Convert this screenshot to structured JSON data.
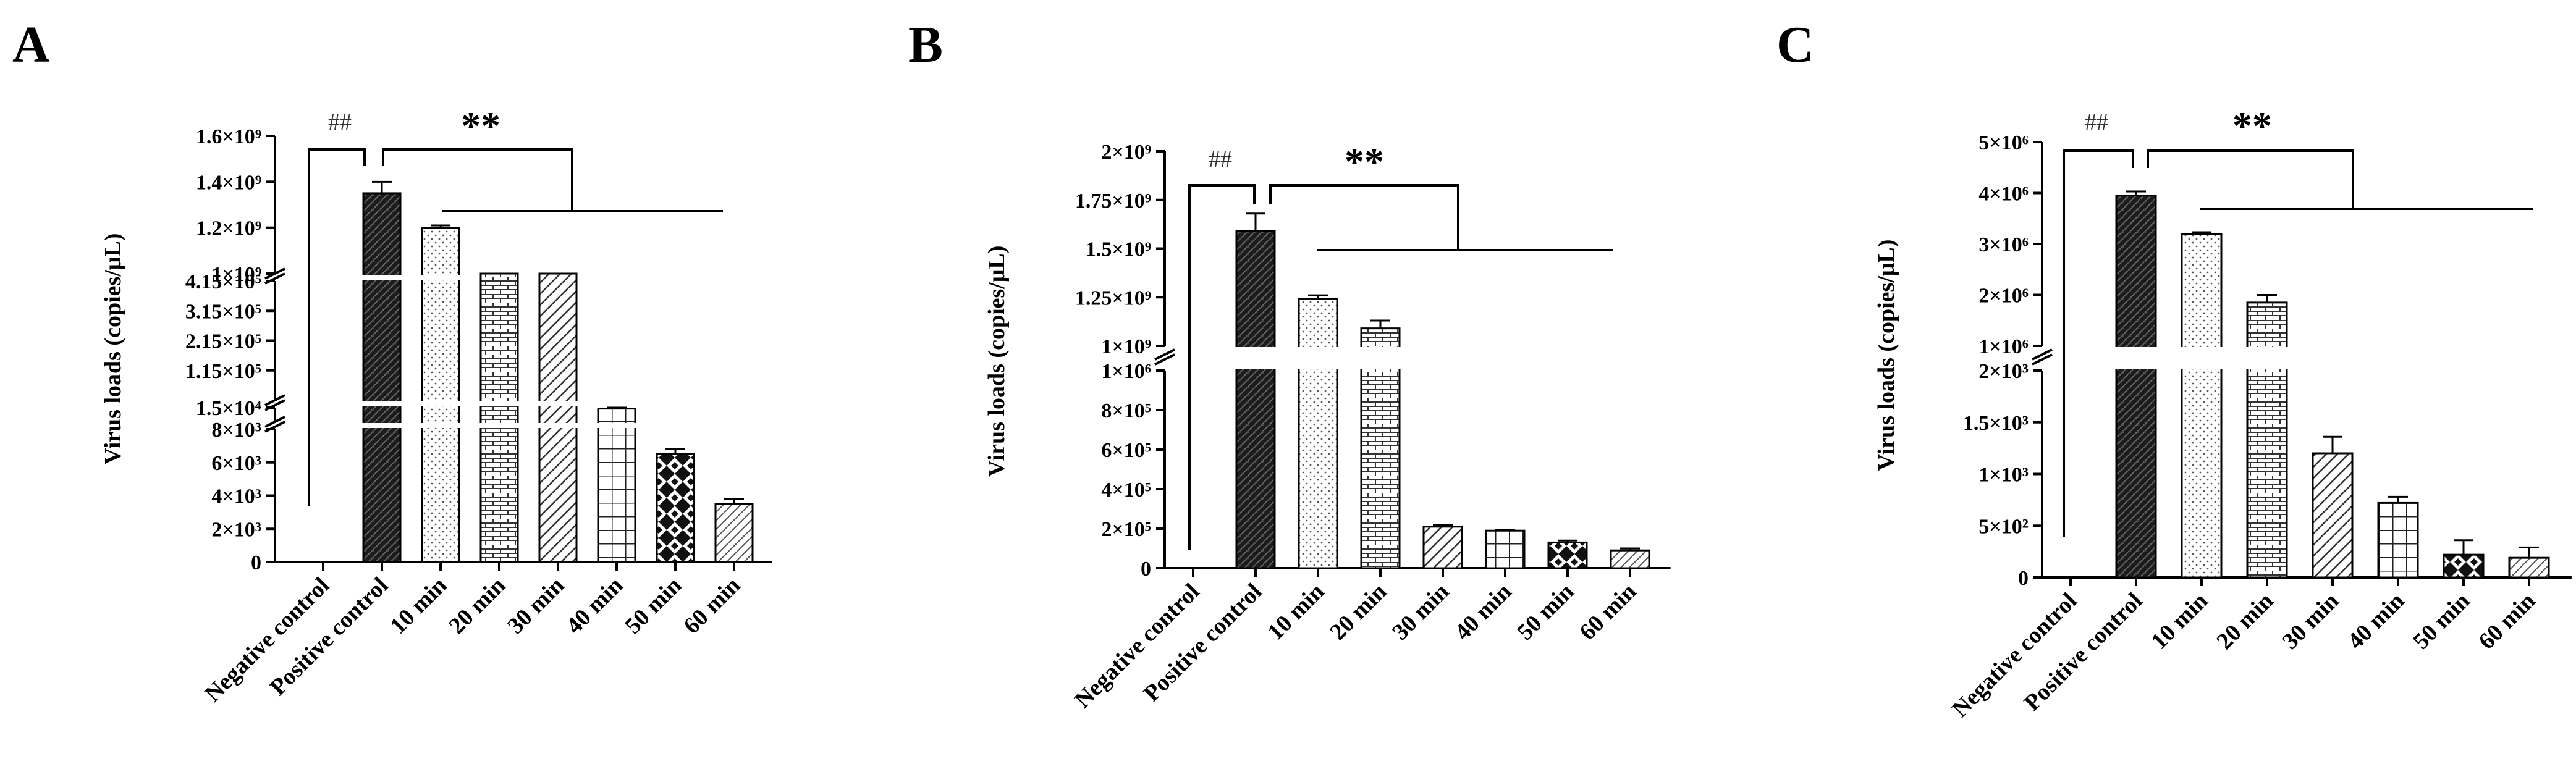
{
  "chart_data": [
    {
      "type": "bar",
      "panel": "A",
      "ylabel": "Virus loads (copies/μL)",
      "categories": [
        "Negative control",
        "Positive control",
        "10 min",
        "20 min",
        "30 min",
        "40 min",
        "50 min",
        "60 min"
      ],
      "values": [
        0,
        1350000000,
        1200000000,
        400000000,
        180000000,
        14500,
        6500,
        3500
      ],
      "errors": [
        0,
        50000000,
        10000000,
        15000000,
        50000000,
        500,
        300,
        300
      ],
      "y_segments": [
        {
          "range": [
            0,
            8000
          ],
          "ticks": [
            0,
            2000,
            4000,
            6000,
            8000
          ],
          "tick_labels": [
            "0",
            "2×10³",
            "4×10³",
            "6×10³",
            "8×10³"
          ]
        },
        {
          "range": [
            8000,
            15000
          ],
          "ticks": [
            15000
          ],
          "tick_labels": [
            "1.5×10⁴"
          ]
        },
        {
          "range": [
            15000,
            415000
          ],
          "ticks": [
            115000,
            215000,
            315000,
            415000
          ],
          "tick_labels": [
            "1.15×10⁵",
            "2.15×10⁵",
            "3.15×10⁵",
            "4.15×10⁵"
          ]
        },
        {
          "range": [
            1000000000,
            1600000000
          ],
          "ticks": [
            1000000000,
            1200000000,
            1400000000,
            1600000000
          ],
          "tick_labels": [
            "1×10⁹",
            "1.2×10⁹",
            "1.4×10⁹",
            "1.6×10⁹"
          ]
        }
      ],
      "annotations": [
        "##",
        "**"
      ]
    },
    {
      "type": "bar",
      "panel": "B",
      "ylabel": "Virus loads (copies/μL)",
      "categories": [
        "Negative control",
        "Positive control",
        "10 min",
        "20 min",
        "30 min",
        "40 min",
        "50 min",
        "60 min"
      ],
      "values": [
        0,
        1590000000,
        1240000000,
        1090000000,
        210000,
        190000,
        130000,
        90000
      ],
      "errors": [
        0,
        90000000,
        20000000,
        40000000,
        8000,
        5000,
        10000,
        10000
      ],
      "y_segments": [
        {
          "range": [
            0,
            1000000
          ],
          "ticks": [
            0,
            200000,
            400000,
            600000,
            800000,
            1000000
          ],
          "tick_labels": [
            "0",
            "2×10⁵",
            "4×10⁵",
            "6×10⁵",
            "8×10⁵",
            "1×10⁶"
          ]
        },
        {
          "range": [
            1000000000,
            2000000000
          ],
          "ticks": [
            1000000000,
            1250000000,
            1500000000,
            1750000000,
            2000000000
          ],
          "tick_labels": [
            "1×10⁹",
            "1.25×10⁹",
            "1.5×10⁹",
            "1.75×10⁹",
            "2×10⁹"
          ]
        }
      ],
      "annotations": [
        "##",
        "**"
      ]
    },
    {
      "type": "bar",
      "panel": "C",
      "ylabel": "Virus loads (copies/μL)",
      "categories": [
        "Negative control",
        "Positive control",
        "10 min",
        "20 min",
        "30 min",
        "40 min",
        "50 min",
        "60 min"
      ],
      "values": [
        0,
        3950000,
        3200000,
        1850000,
        1200,
        720,
        220,
        190
      ],
      "errors": [
        0,
        80000,
        30000,
        150000,
        160,
        60,
        140,
        100
      ],
      "y_segments": [
        {
          "range": [
            0,
            2000
          ],
          "ticks": [
            0,
            500,
            1000,
            1500,
            2000
          ],
          "tick_labels": [
            "0",
            "5×10²",
            "1×10³",
            "1.5×10³",
            "2×10³"
          ]
        },
        {
          "range": [
            1000000,
            5000000
          ],
          "ticks": [
            1000000,
            2000000,
            3000000,
            4000000,
            5000000
          ],
          "tick_labels": [
            "1×10⁶",
            "2×10⁶",
            "3×10⁶",
            "4×10⁶",
            "5×10⁶"
          ]
        }
      ],
      "annotations": [
        "##",
        "**"
      ]
    }
  ],
  "patterns": [
    "none",
    "dense-dark",
    "dots",
    "bricks",
    "diagonal",
    "grid",
    "checker",
    "diagonal-light"
  ]
}
